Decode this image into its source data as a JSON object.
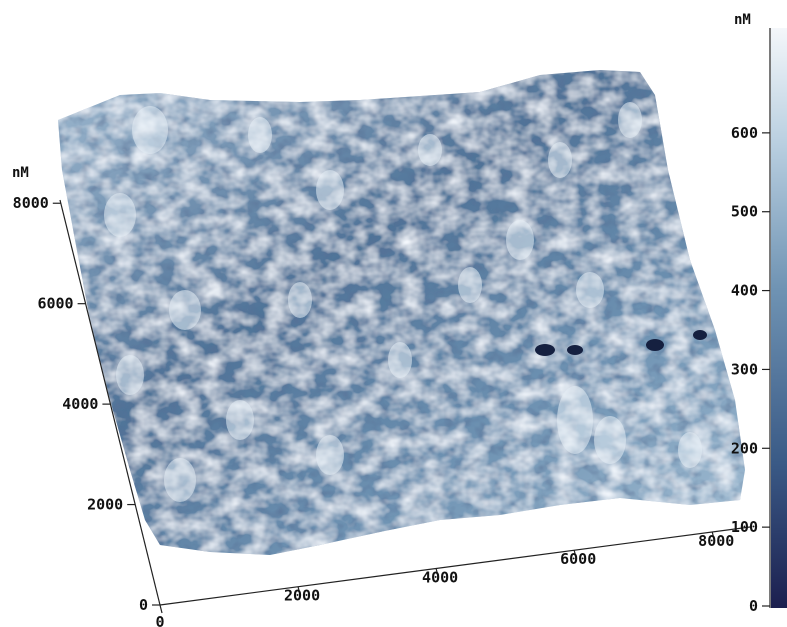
{
  "chart_data": {
    "type": "heatmap",
    "style": "3d-surface",
    "title": "",
    "x_axis": {
      "ticks": [
        0,
        2000,
        4000,
        6000,
        8000
      ],
      "tick_labels": [
        "0",
        "2000",
        "4000",
        "6000",
        "8000"
      ],
      "range": [
        0,
        10000
      ]
    },
    "y_axis": {
      "unit": "nM",
      "ticks": [
        0,
        2000,
        4000,
        6000,
        8000
      ],
      "tick_labels": [
        "0",
        "2000",
        "4000",
        "6000",
        "8000"
      ],
      "range": [
        0,
        10000
      ]
    },
    "colorbar": {
      "unit": "nM",
      "ticks": [
        0,
        100,
        200,
        300,
        400,
        500,
        600
      ],
      "tick_labels": [
        "0",
        "100",
        "200",
        "300",
        "400",
        "500",
        "600"
      ],
      "range": [
        0,
        700
      ],
      "colors": [
        "#1c1f4f",
        "#3a5a86",
        "#6f93b3",
        "#b9cfe0",
        "#f4f7fa"
      ]
    },
    "grid": false,
    "legend": "colorbar-right"
  }
}
